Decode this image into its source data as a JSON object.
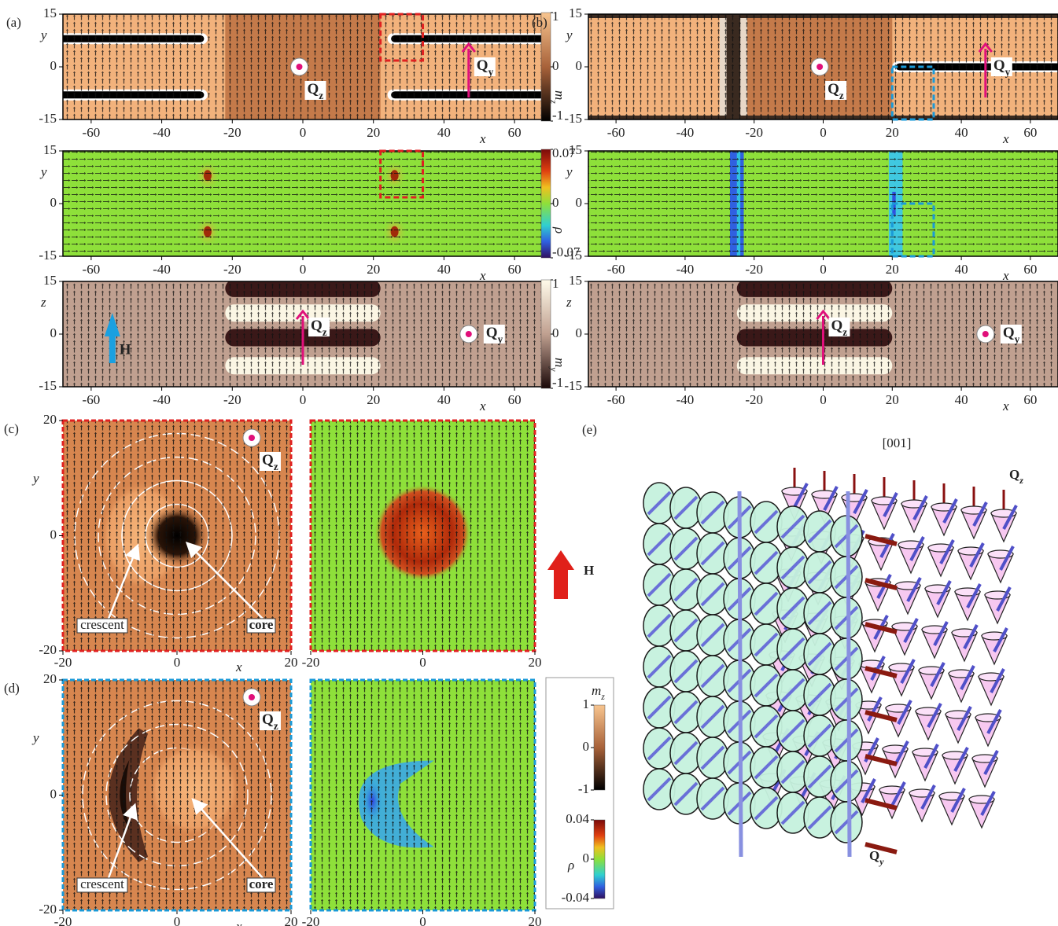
{
  "strips": [
    {
      "label": "(a)",
      "xlabel": "x",
      "ylabel": "y",
      "xlim": [
        -68,
        68
      ],
      "ylim": [
        -15,
        15
      ],
      "xticks": [
        -60,
        -40,
        -20,
        0,
        20,
        40,
        60
      ],
      "yticks": [
        -15,
        0,
        15
      ],
      "colorbar": {
        "base": "m",
        "sub": "z",
        "ticks": [
          1,
          0,
          -1
        ]
      },
      "annotations": [
        {
          "base": "Q",
          "sub": "z"
        },
        {
          "base": "Q",
          "sub": "y"
        }
      ]
    },
    {
      "xlabel": "x",
      "ylabel": "y",
      "xlim": [
        -68,
        68
      ],
      "ylim": [
        -15,
        15
      ],
      "xticks": [
        -60,
        -40,
        -20,
        0,
        20,
        40,
        60
      ],
      "yticks": [
        -15,
        0,
        15
      ],
      "colorbar": {
        "base": "ρ",
        "ticks": [
          0.07,
          0,
          -0.07
        ]
      },
      "annotations": []
    },
    {
      "xlabel": "x",
      "ylabel": "z",
      "xlim": [
        -68,
        68
      ],
      "ylim": [
        -15,
        15
      ],
      "xticks": [
        -60,
        -40,
        -20,
        0,
        20,
        40,
        60
      ],
      "yticks": [
        -15,
        0,
        15
      ],
      "colorbar": {
        "base": "m",
        "sub": "y",
        "ticks": [
          1,
          0,
          -1
        ]
      },
      "annotations": [
        {
          "base": "H"
        },
        {
          "base": "Q",
          "sub": "z"
        },
        {
          "base": "Q",
          "sub": "y"
        }
      ]
    },
    {
      "label": "(b)",
      "xlabel": "x",
      "ylabel": "y",
      "xlim": [
        -68,
        68
      ],
      "ylim": [
        -15,
        15
      ],
      "xticks": [
        -60,
        -40,
        -20,
        0,
        20,
        40,
        60
      ],
      "yticks": [
        -15,
        0,
        15
      ],
      "annotations": [
        {
          "base": "Q",
          "sub": "z"
        },
        {
          "base": "Q",
          "sub": "y"
        }
      ]
    },
    {
      "xlabel": "x",
      "ylabel": "y",
      "xlim": [
        -68,
        68
      ],
      "ylim": [
        -15,
        15
      ],
      "xticks": [
        -60,
        -40,
        -20,
        0,
        20,
        40,
        60
      ],
      "yticks": [
        -15,
        0,
        15
      ],
      "annotations": []
    },
    {
      "xlabel": "x",
      "ylabel": "z",
      "xlim": [
        -68,
        68
      ],
      "ylim": [
        -15,
        15
      ],
      "xticks": [
        -60,
        -40,
        -20,
        0,
        20,
        40,
        60
      ],
      "yticks": [
        -15,
        0,
        15
      ],
      "annotations": [
        {
          "base": "Q",
          "sub": "z"
        },
        {
          "base": "Q",
          "sub": "y"
        }
      ]
    }
  ],
  "squares": [
    {
      "label": "(c)",
      "xlabel": "x",
      "ylabel": "y",
      "xlim": [
        -20,
        20
      ],
      "ylim": [
        -20,
        20
      ],
      "xticks": [
        -20,
        0,
        20
      ],
      "yticks": [
        -20,
        0,
        20
      ],
      "annotations": [
        {
          "base": "Q",
          "sub": "z"
        },
        {
          "base": "crescent"
        },
        {
          "base": "core"
        }
      ]
    },
    {
      "xlim": [
        -20,
        20
      ],
      "ylim": [
        -20,
        20
      ],
      "xticks": [
        -20,
        0,
        20
      ]
    },
    {
      "label": "(d)",
      "xlabel": "x",
      "ylabel": "y",
      "xlim": [
        -20,
        20
      ],
      "ylim": [
        -20,
        20
      ],
      "xticks": [
        -20,
        0,
        20
      ],
      "yticks": [
        -20,
        0,
        20
      ],
      "annotations": [
        {
          "base": "Q",
          "sub": "z"
        },
        {
          "base": "crescent"
        },
        {
          "base": "core"
        }
      ]
    },
    {
      "xlim": [
        -20,
        20
      ],
      "ylim": [
        -20,
        20
      ],
      "xticks": [
        -20,
        0,
        20
      ]
    }
  ],
  "legend": {
    "colorbars": [
      {
        "base": "m",
        "sub": "z",
        "ticks": [
          1,
          0,
          -1
        ]
      },
      {
        "base": "ρ",
        "ticks": [
          0.04,
          0,
          -0.04
        ]
      }
    ]
  },
  "field": {
    "base": "H"
  },
  "illustration": {
    "label": "(e)",
    "direction": "[001]",
    "annotations": [
      {
        "base": "Q",
        "sub": "z"
      },
      {
        "base": "Q",
        "sub": "y"
      }
    ]
  }
}
